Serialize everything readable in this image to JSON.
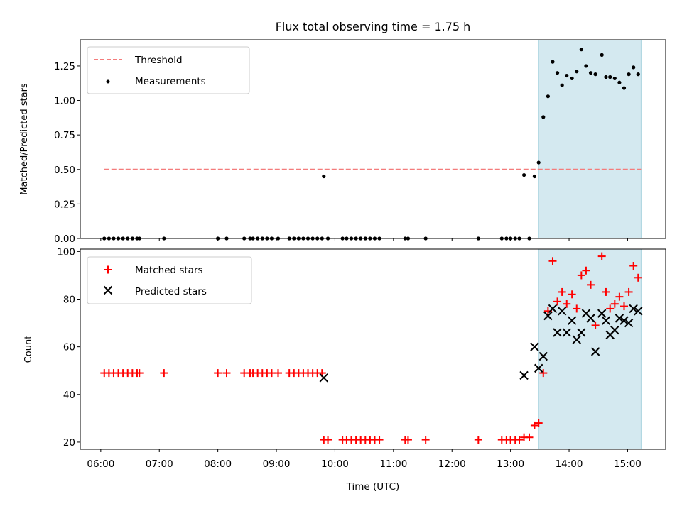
{
  "title": "Flux total observing time = 1.75 h",
  "chart_data": [
    {
      "type": "scatter",
      "ylabel": "Matched/Predicted stars",
      "xlim": [
        5.65,
        15.65
      ],
      "ylim": [
        0,
        1.44
      ],
      "yticks": [
        "0.00",
        "0.25",
        "0.50",
        "0.75",
        "1.00",
        "1.25"
      ],
      "ytick_values": [
        0,
        0.25,
        0.5,
        0.75,
        1.0,
        1.25
      ],
      "legend_position": "upper-left",
      "shaded_region": {
        "x_start": 13.48,
        "x_end": 15.23,
        "color": "#d4e9f0"
      },
      "threshold": {
        "name": "Threshold",
        "y": 0.5,
        "x_start": 6.06,
        "x_end": 15.23,
        "color": "#f47c7c"
      },
      "measurements": {
        "name": "Measurements",
        "color": "#000000",
        "points": [
          [
            6.06,
            0
          ],
          [
            6.14,
            0
          ],
          [
            6.22,
            0
          ],
          [
            6.3,
            0
          ],
          [
            6.38,
            0
          ],
          [
            6.46,
            0
          ],
          [
            6.54,
            0
          ],
          [
            6.62,
            0
          ],
          [
            6.66,
            0
          ],
          [
            7.08,
            0
          ],
          [
            8.0,
            0
          ],
          [
            8.15,
            0
          ],
          [
            8.45,
            0
          ],
          [
            8.55,
            0
          ],
          [
            8.6,
            0
          ],
          [
            8.68,
            0
          ],
          [
            8.76,
            0
          ],
          [
            8.84,
            0
          ],
          [
            8.92,
            0
          ],
          [
            9.03,
            0
          ],
          [
            9.22,
            0
          ],
          [
            9.3,
            0
          ],
          [
            9.38,
            0
          ],
          [
            9.46,
            0
          ],
          [
            9.54,
            0
          ],
          [
            9.62,
            0
          ],
          [
            9.7,
            0
          ],
          [
            9.78,
            0
          ],
          [
            9.81,
            0.45
          ],
          [
            9.88,
            0
          ],
          [
            10.13,
            0
          ],
          [
            10.2,
            0
          ],
          [
            10.28,
            0
          ],
          [
            10.36,
            0
          ],
          [
            10.44,
            0
          ],
          [
            10.52,
            0
          ],
          [
            10.6,
            0
          ],
          [
            10.68,
            0
          ],
          [
            10.76,
            0
          ],
          [
            11.2,
            0
          ],
          [
            11.25,
            0
          ],
          [
            11.55,
            0
          ],
          [
            12.45,
            0
          ],
          [
            12.85,
            0
          ],
          [
            12.93,
            0
          ],
          [
            13.0,
            0
          ],
          [
            13.08,
            0
          ],
          [
            13.15,
            0
          ],
          [
            13.23,
            0.46
          ],
          [
            13.32,
            0
          ],
          [
            13.41,
            0.45
          ],
          [
            13.48,
            0.55
          ],
          [
            13.56,
            0.88
          ],
          [
            13.64,
            1.03
          ],
          [
            13.72,
            1.28
          ],
          [
            13.8,
            1.2
          ],
          [
            13.88,
            1.11
          ],
          [
            13.96,
            1.18
          ],
          [
            14.05,
            1.16
          ],
          [
            14.13,
            1.21
          ],
          [
            14.21,
            1.37
          ],
          [
            14.29,
            1.25
          ],
          [
            14.37,
            1.2
          ],
          [
            14.45,
            1.19
          ],
          [
            14.56,
            1.33
          ],
          [
            14.63,
            1.17
          ],
          [
            14.7,
            1.17
          ],
          [
            14.78,
            1.16
          ],
          [
            14.86,
            1.13
          ],
          [
            14.94,
            1.09
          ],
          [
            15.02,
            1.19
          ],
          [
            15.1,
            1.24
          ],
          [
            15.18,
            1.19
          ]
        ]
      }
    },
    {
      "type": "scatter",
      "xlabel": "Time (UTC)",
      "ylabel": "Count",
      "xlim": [
        5.65,
        15.65
      ],
      "ylim": [
        17,
        101
      ],
      "yticks": [
        "20",
        "40",
        "60",
        "80",
        "100"
      ],
      "ytick_values": [
        20,
        40,
        60,
        80,
        100
      ],
      "xticks": [
        "06:00",
        "07:00",
        "08:00",
        "09:00",
        "10:00",
        "11:00",
        "12:00",
        "13:00",
        "14:00",
        "15:00"
      ],
      "xtick_values": [
        6,
        7,
        8,
        9,
        10,
        11,
        12,
        13,
        14,
        15
      ],
      "legend_position": "upper-left",
      "shaded_region": {
        "x_start": 13.48,
        "x_end": 15.23,
        "color": "#d4e9f0"
      },
      "series": [
        {
          "name": "Matched stars",
          "marker": "plus",
          "color": "#ff0000",
          "points": [
            [
              6.06,
              49
            ],
            [
              6.14,
              49
            ],
            [
              6.22,
              49
            ],
            [
              6.3,
              49
            ],
            [
              6.38,
              49
            ],
            [
              6.46,
              49
            ],
            [
              6.54,
              49
            ],
            [
              6.62,
              49
            ],
            [
              6.66,
              49
            ],
            [
              7.08,
              49
            ],
            [
              8.0,
              49
            ],
            [
              8.15,
              49
            ],
            [
              8.45,
              49
            ],
            [
              8.55,
              49
            ],
            [
              8.6,
              49
            ],
            [
              8.68,
              49
            ],
            [
              8.76,
              49
            ],
            [
              8.84,
              49
            ],
            [
              8.92,
              49
            ],
            [
              9.03,
              49
            ],
            [
              9.22,
              49
            ],
            [
              9.3,
              49
            ],
            [
              9.38,
              49
            ],
            [
              9.46,
              49
            ],
            [
              9.54,
              49
            ],
            [
              9.62,
              49
            ],
            [
              9.7,
              49
            ],
            [
              9.78,
              49
            ],
            [
              9.81,
              21
            ],
            [
              9.88,
              21
            ],
            [
              10.13,
              21
            ],
            [
              10.2,
              21
            ],
            [
              10.28,
              21
            ],
            [
              10.36,
              21
            ],
            [
              10.44,
              21
            ],
            [
              10.52,
              21
            ],
            [
              10.6,
              21
            ],
            [
              10.68,
              21
            ],
            [
              10.76,
              21
            ],
            [
              11.2,
              21
            ],
            [
              11.25,
              21
            ],
            [
              11.55,
              21
            ],
            [
              12.45,
              21
            ],
            [
              12.85,
              21
            ],
            [
              12.93,
              21
            ],
            [
              13.0,
              21
            ],
            [
              13.08,
              21
            ],
            [
              13.15,
              21
            ],
            [
              13.23,
              22
            ],
            [
              13.32,
              22
            ],
            [
              13.41,
              27
            ],
            [
              13.48,
              28
            ],
            [
              13.56,
              49
            ],
            [
              13.64,
              75
            ],
            [
              13.72,
              96
            ],
            [
              13.8,
              79
            ],
            [
              13.88,
              83
            ],
            [
              13.96,
              78
            ],
            [
              14.05,
              82
            ],
            [
              14.13,
              76
            ],
            [
              14.21,
              90
            ],
            [
              14.29,
              92
            ],
            [
              14.37,
              86
            ],
            [
              14.45,
              69
            ],
            [
              14.56,
              98
            ],
            [
              14.63,
              83
            ],
            [
              14.7,
              76
            ],
            [
              14.78,
              78
            ],
            [
              14.86,
              81
            ],
            [
              14.94,
              77
            ],
            [
              15.02,
              83
            ],
            [
              15.1,
              94
            ],
            [
              15.18,
              89
            ]
          ]
        },
        {
          "name": "Predicted stars",
          "marker": "x",
          "color": "#000000",
          "points": [
            [
              9.81,
              47
            ],
            [
              13.23,
              48
            ],
            [
              13.41,
              60
            ],
            [
              13.48,
              51
            ],
            [
              13.56,
              56
            ],
            [
              13.64,
              73
            ],
            [
              13.72,
              76
            ],
            [
              13.8,
              66
            ],
            [
              13.88,
              75
            ],
            [
              13.96,
              66
            ],
            [
              14.05,
              71
            ],
            [
              14.13,
              63
            ],
            [
              14.21,
              66
            ],
            [
              14.29,
              74
            ],
            [
              14.37,
              72
            ],
            [
              14.45,
              58
            ],
            [
              14.56,
              74
            ],
            [
              14.63,
              71
            ],
            [
              14.7,
              65
            ],
            [
              14.78,
              67
            ],
            [
              14.86,
              72
            ],
            [
              14.94,
              71
            ],
            [
              15.02,
              70
            ],
            [
              15.1,
              76
            ],
            [
              15.18,
              75
            ]
          ]
        }
      ]
    }
  ]
}
